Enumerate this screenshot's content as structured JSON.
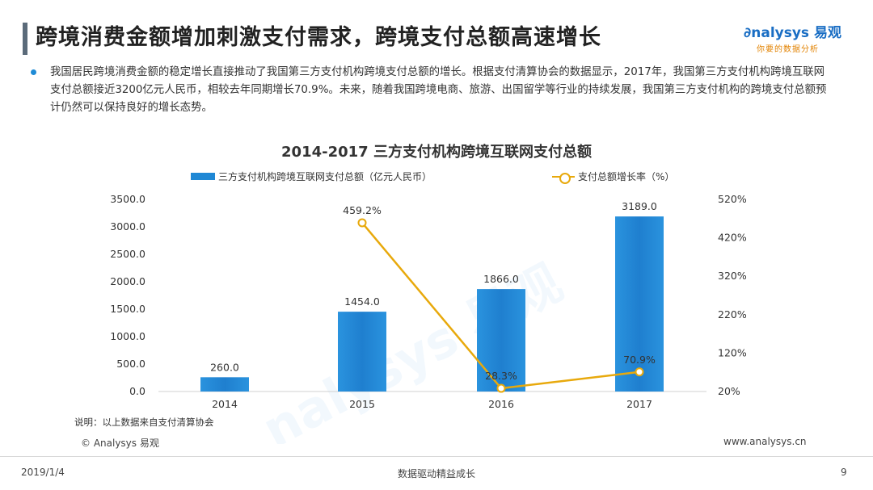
{
  "header": {
    "title": "跨境消费金额增加刺激支付需求，跨境支付总额高速增长",
    "logo_brand": "nalysys",
    "logo_brand_cn": "易观",
    "logo_tagline": "你要的数据分析"
  },
  "description": "我国居民跨境消费金额的稳定增长直接推动了我国第三方支付机构跨境支付总额的增长。根据支付清算协会的数据显示，2017年，我国第三方支付机构跨境互联网支付总额接近3200亿元人民币，相较去年同期增长70.9%。未来，随着我国跨境电商、旅游、出国留学等行业的持续发展，我国第三方支付机构的跨境支付总额预计仍然可以保持良好的增长态势。",
  "chart_data": {
    "type": "bar",
    "title": "2014-2017 三方支付机构跨境互联网支付总额",
    "categories": [
      "2014",
      "2015",
      "2016",
      "2017"
    ],
    "series": [
      {
        "name": "三方支付机构跨境互联网支付总额（亿元人民币）",
        "type": "bar",
        "axis": "left",
        "values": [
          260.0,
          1454.0,
          1866.0,
          3189.0
        ],
        "labels": [
          "260.0",
          "1454.0",
          "1866.0",
          "3189.0"
        ],
        "color": "#1f88d5"
      },
      {
        "name": "支付总额增长率（%）",
        "type": "line",
        "axis": "right",
        "values": [
          null,
          459.2,
          28.3,
          70.9
        ],
        "labels": [
          "",
          "459.2%",
          "28.3%",
          "70.9%"
        ],
        "color": "#e8a90c"
      }
    ],
    "y_left": {
      "ylim": [
        0,
        3500
      ],
      "ticks": [
        0,
        500,
        1000,
        1500,
        2000,
        2500,
        3000,
        3500
      ],
      "tick_labels": [
        "0.0",
        "500.0",
        "1000.0",
        "1500.0",
        "2000.0",
        "2500.0",
        "3000.0",
        "3500.0"
      ]
    },
    "y_right": {
      "ylim": [
        20,
        520
      ],
      "ticks": [
        20,
        120,
        220,
        320,
        420,
        520
      ],
      "tick_labels": [
        "20%",
        "120%",
        "220%",
        "320%",
        "420%",
        "520%"
      ]
    },
    "grid": false,
    "legend": "top-center"
  },
  "footer": {
    "note": "说明：以上数据来自支付清算协会",
    "copyright": "© Analysys 易观",
    "website": "www.analysys.cn",
    "date": "2019/1/4",
    "slogan": "数据驱动精益成长",
    "page": "9"
  }
}
